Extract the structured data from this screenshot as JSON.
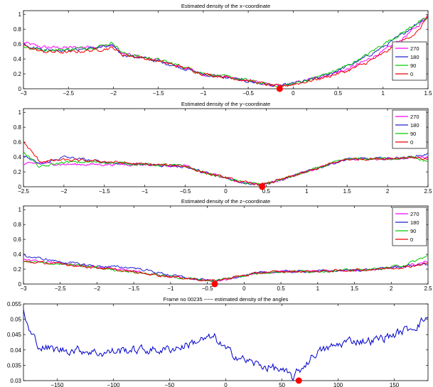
{
  "chart_data": [
    {
      "type": "line",
      "title": "Estimated density of the x−coordinate",
      "xlim": [
        -3,
        1.5
      ],
      "ylim": [
        0,
        1.05
      ],
      "xticks": [
        -3,
        -2.5,
        -2,
        -1.5,
        -1,
        -0.5,
        0,
        0.5,
        1,
        1.5
      ],
      "xtick_labels": [
        "−3",
        "−2.5",
        "−2",
        "−1.5",
        "−1",
        "−0.5",
        "0",
        "0.5",
        "1",
        "1.5"
      ],
      "yticks": [
        0,
        0.2,
        0.4,
        0.6,
        0.8,
        1
      ],
      "ytick_labels": [
        "0",
        "0.2",
        "0.4",
        "0.6",
        "0.8",
        "1"
      ],
      "legend_position": "right",
      "series": [
        {
          "name": "270",
          "color": "#ff00ff",
          "noise": 0.018,
          "x": [
            -3,
            -2.8,
            -2.5,
            -2.2,
            -2.0,
            -1.9,
            -1.7,
            -1.5,
            -1.2,
            -1.0,
            -0.7,
            -0.5,
            -0.3,
            -0.15,
            0,
            0.2,
            0.4,
            0.6,
            0.8,
            1.0,
            1.2,
            1.4,
            1.5
          ],
          "y": [
            0.62,
            0.56,
            0.55,
            0.57,
            0.58,
            0.47,
            0.43,
            0.38,
            0.28,
            0.2,
            0.15,
            0.11,
            0.06,
            0.03,
            0.07,
            0.13,
            0.19,
            0.26,
            0.37,
            0.5,
            0.66,
            0.86,
            1.0
          ]
        },
        {
          "name": "180",
          "color": "#2222cc",
          "noise": 0.018,
          "x": [
            -3,
            -2.8,
            -2.5,
            -2.2,
            -2.0,
            -1.9,
            -1.7,
            -1.5,
            -1.2,
            -1.0,
            -0.7,
            -0.5,
            -0.3,
            -0.15,
            0,
            0.2,
            0.4,
            0.6,
            0.8,
            1.0,
            1.2,
            1.4,
            1.5
          ],
          "y": [
            0.6,
            0.53,
            0.52,
            0.55,
            0.57,
            0.46,
            0.42,
            0.37,
            0.27,
            0.19,
            0.14,
            0.1,
            0.06,
            0.03,
            0.07,
            0.12,
            0.2,
            0.3,
            0.42,
            0.56,
            0.72,
            0.9,
            0.96
          ]
        },
        {
          "name": "90",
          "color": "#00cc00",
          "noise": 0.018,
          "x": [
            -3,
            -2.8,
            -2.5,
            -2.2,
            -2.0,
            -1.9,
            -1.7,
            -1.5,
            -1.2,
            -1.0,
            -0.7,
            -0.5,
            -0.3,
            -0.15,
            0,
            0.2,
            0.4,
            0.6,
            0.8,
            1.0,
            1.2,
            1.4,
            1.5
          ],
          "y": [
            0.57,
            0.52,
            0.53,
            0.56,
            0.62,
            0.48,
            0.43,
            0.39,
            0.29,
            0.21,
            0.15,
            0.11,
            0.06,
            0.03,
            0.07,
            0.13,
            0.21,
            0.31,
            0.44,
            0.6,
            0.74,
            0.9,
            0.94
          ]
        },
        {
          "name": "0",
          "color": "#ee0000",
          "noise": 0.018,
          "x": [
            -3,
            -2.8,
            -2.5,
            -2.2,
            -2.0,
            -1.9,
            -1.7,
            -1.5,
            -1.2,
            -1.0,
            -0.7,
            -0.5,
            -0.3,
            -0.15,
            0,
            0.2,
            0.4,
            0.6,
            0.8,
            1.0,
            1.2,
            1.4,
            1.5
          ],
          "y": [
            0.58,
            0.5,
            0.49,
            0.52,
            0.55,
            0.46,
            0.42,
            0.37,
            0.28,
            0.2,
            0.15,
            0.11,
            0.06,
            0.03,
            0.06,
            0.11,
            0.17,
            0.24,
            0.34,
            0.47,
            0.63,
            0.78,
            1.0
          ]
        }
      ],
      "marker": {
        "x": -0.15,
        "y": 0,
        "color": "#ff0000"
      }
    },
    {
      "type": "line",
      "title": "Estimated density of the y−coordinate",
      "xlim": [
        -2.5,
        2.5
      ],
      "ylim": [
        0,
        1.05
      ],
      "xticks": [
        -2.5,
        -2,
        -1.5,
        -1,
        -0.5,
        0,
        0.5,
        1,
        1.5,
        2,
        2.5
      ],
      "xtick_labels": [
        "−2.5",
        "−2",
        "−1.5",
        "−1",
        "−0.5",
        "0",
        "0.5",
        "1",
        "1.5",
        "2",
        "2.5"
      ],
      "yticks": [
        0,
        0.2,
        0.4,
        0.6,
        0.8,
        1
      ],
      "ytick_labels": [
        "0",
        "0.2",
        "0.4",
        "0.6",
        "0.8",
        "1"
      ],
      "legend_position": "top-right",
      "series": [
        {
          "name": "270",
          "color": "#ff00ff",
          "noise": 0.015,
          "x": [
            -2.5,
            -2.3,
            -2.0,
            -1.5,
            -1.0,
            -0.5,
            -0.3,
            0,
            0.2,
            0.45,
            0.7,
            1.0,
            1.3,
            1.5,
            2.0,
            2.3,
            2.5
          ],
          "y": [
            0.3,
            0.32,
            0.3,
            0.3,
            0.3,
            0.28,
            0.2,
            0.12,
            0.06,
            0.03,
            0.1,
            0.2,
            0.31,
            0.37,
            0.38,
            0.39,
            0.38
          ]
        },
        {
          "name": "180",
          "color": "#2222cc",
          "noise": 0.015,
          "x": [
            -2.5,
            -2.3,
            -2.0,
            -1.5,
            -1.0,
            -0.5,
            -0.3,
            0,
            0.2,
            0.45,
            0.7,
            1.0,
            1.3,
            1.5,
            2.0,
            2.3,
            2.5
          ],
          "y": [
            0.42,
            0.3,
            0.4,
            0.33,
            0.3,
            0.27,
            0.2,
            0.12,
            0.06,
            0.03,
            0.1,
            0.2,
            0.31,
            0.37,
            0.38,
            0.4,
            0.44
          ]
        },
        {
          "name": "90",
          "color": "#00cc00",
          "noise": 0.015,
          "x": [
            -2.5,
            -2.3,
            -2.0,
            -1.5,
            -1.0,
            -0.5,
            -0.3,
            0,
            0.2,
            0.45,
            0.7,
            1.0,
            1.3,
            1.5,
            2.0,
            2.3,
            2.5
          ],
          "y": [
            0.48,
            0.26,
            0.33,
            0.33,
            0.3,
            0.28,
            0.2,
            0.12,
            0.06,
            0.03,
            0.1,
            0.2,
            0.31,
            0.37,
            0.38,
            0.39,
            0.34
          ]
        },
        {
          "name": "0",
          "color": "#ee0000",
          "noise": 0.015,
          "x": [
            -2.5,
            -2.3,
            -2.0,
            -1.5,
            -1.0,
            -0.5,
            -0.3,
            0,
            0.2,
            0.45,
            0.7,
            1.0,
            1.3,
            1.5,
            2.0,
            2.3,
            2.5
          ],
          "y": [
            0.6,
            0.34,
            0.36,
            0.34,
            0.3,
            0.28,
            0.2,
            0.12,
            0.06,
            0.03,
            0.1,
            0.2,
            0.31,
            0.37,
            0.38,
            0.4,
            0.37
          ]
        }
      ],
      "marker": {
        "x": 0.45,
        "y": 0,
        "color": "#ff0000"
      }
    },
    {
      "type": "line",
      "title": "Estimated density of the z−coordinate",
      "xlim": [
        -3,
        2.5
      ],
      "ylim": [
        0,
        1.05
      ],
      "xticks": [
        -3,
        -2.5,
        -2,
        -1.5,
        -1,
        -0.5,
        0,
        0.5,
        1,
        1.5,
        2,
        2.5
      ],
      "xtick_labels": [
        "−3",
        "−2.5",
        "−2",
        "−1.5",
        "−1",
        "−0.5",
        "0",
        "0.5",
        "1",
        "1.5",
        "2",
        "2.5"
      ],
      "yticks": [
        0,
        0.2,
        0.4,
        0.6,
        0.8,
        1
      ],
      "ytick_labels": [
        "0",
        "0.2",
        "0.4",
        "0.6",
        "0.8",
        "1"
      ],
      "legend_position": "top-right",
      "series": [
        {
          "name": "270",
          "color": "#ff00ff",
          "noise": 0.014,
          "x": [
            -3,
            -2.5,
            -2.0,
            -1.5,
            -1.0,
            -0.7,
            -0.4,
            -0.1,
            0.3,
            0.8,
            1.3,
            1.8,
            2.2,
            2.5
          ],
          "y": [
            0.32,
            0.28,
            0.23,
            0.17,
            0.1,
            0.07,
            0.04,
            0.1,
            0.16,
            0.17,
            0.18,
            0.2,
            0.24,
            0.3
          ]
        },
        {
          "name": "180",
          "color": "#2222cc",
          "noise": 0.014,
          "x": [
            -3,
            -2.5,
            -2.0,
            -1.5,
            -1.0,
            -0.7,
            -0.4,
            -0.1,
            0.3,
            0.8,
            1.3,
            1.8,
            2.2,
            2.5
          ],
          "y": [
            0.38,
            0.3,
            0.24,
            0.22,
            0.12,
            0.07,
            0.04,
            0.1,
            0.16,
            0.17,
            0.18,
            0.2,
            0.24,
            0.27
          ]
        },
        {
          "name": "90",
          "color": "#00cc00",
          "noise": 0.014,
          "x": [
            -3,
            -2.5,
            -2.0,
            -1.5,
            -1.0,
            -0.7,
            -0.4,
            -0.1,
            0.3,
            0.8,
            1.3,
            1.8,
            2.2,
            2.5
          ],
          "y": [
            0.3,
            0.27,
            0.22,
            0.16,
            0.1,
            0.07,
            0.04,
            0.1,
            0.16,
            0.17,
            0.18,
            0.2,
            0.26,
            0.38
          ]
        },
        {
          "name": "0",
          "color": "#ee0000",
          "noise": 0.014,
          "x": [
            -3,
            -2.5,
            -2.0,
            -1.5,
            -1.0,
            -0.7,
            -0.4,
            -0.1,
            0.3,
            0.8,
            1.3,
            1.8,
            2.2,
            2.5
          ],
          "y": [
            0.3,
            0.27,
            0.22,
            0.16,
            0.1,
            0.07,
            0.04,
            0.1,
            0.16,
            0.17,
            0.18,
            0.2,
            0.23,
            0.28
          ]
        }
      ],
      "marker": {
        "x": -0.4,
        "y": 0,
        "color": "#ff0000"
      }
    },
    {
      "type": "line",
      "title": "Frame no 00235 −−− estimated density of the angles",
      "xlim": [
        -180,
        180
      ],
      "ylim": [
        0.03,
        0.055
      ],
      "xticks": [
        -150,
        -100,
        -50,
        0,
        50,
        100,
        150
      ],
      "xtick_labels": [
        "−150",
        "−100",
        "−50",
        "0",
        "50",
        "100",
        "150"
      ],
      "yticks": [
        0.03,
        0.035,
        0.04,
        0.045,
        0.05,
        0.055
      ],
      "ytick_labels": [
        "0.03",
        "0.035",
        "0.04",
        "0.045",
        "0.05",
        "0.055"
      ],
      "legend_position": "none",
      "series": [
        {
          "name": "",
          "color": "#0000cc",
          "noise": 0.0012,
          "x": [
            -180,
            -175,
            -165,
            -150,
            -130,
            -110,
            -90,
            -70,
            -55,
            -40,
            -25,
            -10,
            0,
            15,
            30,
            45,
            60,
            70,
            80,
            95,
            110,
            130,
            150,
            170,
            180
          ],
          "y": [
            0.053,
            0.046,
            0.041,
            0.04,
            0.04,
            0.039,
            0.04,
            0.04,
            0.04,
            0.041,
            0.043,
            0.044,
            0.04,
            0.037,
            0.035,
            0.034,
            0.031,
            0.035,
            0.039,
            0.041,
            0.043,
            0.043,
            0.045,
            0.048,
            0.051
          ]
        }
      ],
      "marker": {
        "x": 65,
        "y": 0.03,
        "color": "#ff0000"
      }
    }
  ]
}
